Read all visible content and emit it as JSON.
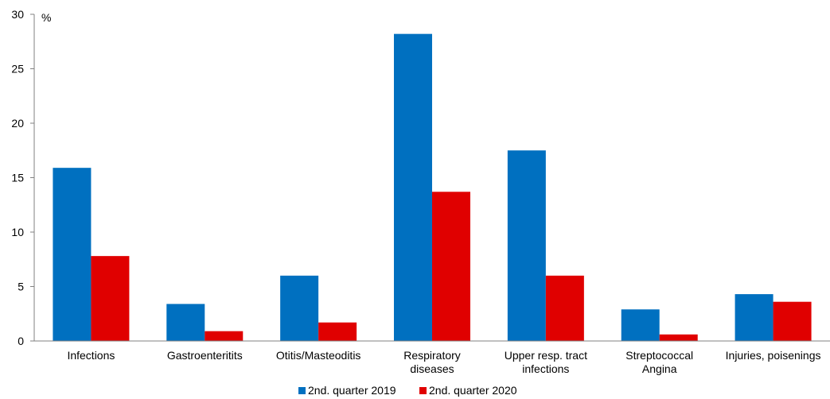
{
  "chart_data": {
    "type": "bar",
    "ylabel": "%",
    "ylim": [
      0,
      30
    ],
    "yticks": [
      0,
      5,
      10,
      15,
      20,
      25,
      30
    ],
    "grid": false,
    "legend_position": "bottom",
    "categories": [
      [
        "Infections"
      ],
      [
        "Gastroenteritits"
      ],
      [
        "Otitis/Masteoditis"
      ],
      [
        "Respiratory",
        "diseases"
      ],
      [
        "Upper resp. tract",
        "infections"
      ],
      [
        "Streptococcal",
        "Angina"
      ],
      [
        "Injuries, poisenings"
      ]
    ],
    "series": [
      {
        "name": "2nd. quarter 2019",
        "color": "#0070C0",
        "values": [
          15.9,
          3.4,
          6.0,
          28.2,
          17.5,
          2.9,
          4.3
        ]
      },
      {
        "name": "2nd. quarter 2020",
        "color": "#E00000",
        "values": [
          7.8,
          0.9,
          1.7,
          13.7,
          6.0,
          0.6,
          3.6
        ]
      }
    ]
  }
}
